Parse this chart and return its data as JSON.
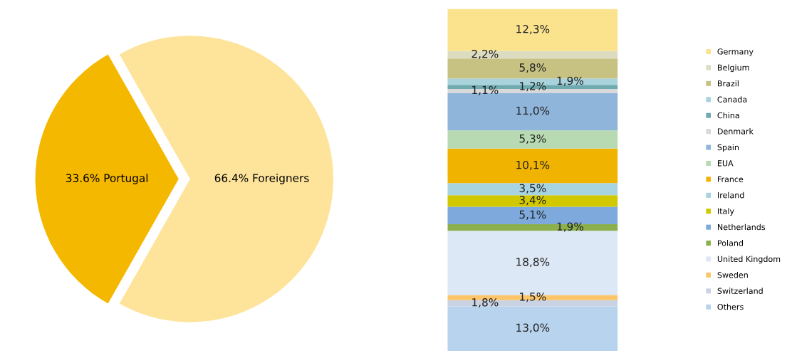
{
  "chart_data": [
    {
      "type": "pie",
      "categories": [
        "Portugal",
        "Foreigners"
      ],
      "values": [
        33.6,
        66.4
      ],
      "value_labels": [
        "33.6%",
        "66.4%"
      ],
      "colors": [
        "#f5b800",
        "#fde49a"
      ]
    },
    {
      "type": "bar",
      "stacked": true,
      "categories": [
        null
      ],
      "tick_labels": false,
      "legend": "right",
      "series": [
        {
          "name": "Others",
          "color": "#b8d3ee",
          "values": [
            13.0
          ],
          "value_labels": [
            "13,0%"
          ]
        },
        {
          "name": "Switzerland",
          "color": "#c9d3e3",
          "values": [
            1.8
          ],
          "value_labels": [
            "1,8%"
          ]
        },
        {
          "name": "Sweden",
          "color": "#fcc56a",
          "values": [
            1.5
          ],
          "value_labels": [
            "1,5%"
          ]
        },
        {
          "name": "United Kingdom",
          "color": "#dce8f5",
          "values": [
            18.8
          ],
          "value_labels": [
            "18,8%"
          ]
        },
        {
          "name": "Poland",
          "color": "#8db04e",
          "values": [
            1.9
          ],
          "value_labels": [
            "1,9%"
          ]
        },
        {
          "name": "Netherlands",
          "color": "#7ea9dc",
          "values": [
            5.1
          ],
          "value_labels": [
            "5,1%"
          ]
        },
        {
          "name": "Italy",
          "color": "#d2c800",
          "values": [
            3.4
          ],
          "value_labels": [
            "3,4%"
          ]
        },
        {
          "name": "Ireland",
          "color": "#a8d3e0",
          "values": [
            3.5
          ],
          "value_labels": [
            "3,5%"
          ]
        },
        {
          "name": "France",
          "color": "#f0b400",
          "values": [
            10.1
          ],
          "value_labels": [
            "10,1%"
          ]
        },
        {
          "name": "EUA",
          "color": "#b7dab2",
          "values": [
            5.3
          ],
          "value_labels": [
            "5,3%"
          ]
        },
        {
          "name": "Spain",
          "color": "#8fb5db",
          "values": [
            11.0
          ],
          "value_labels": [
            "11,0%"
          ]
        },
        {
          "name": "Denmark",
          "color": "#d9d9d9",
          "values": [
            1.1
          ],
          "value_labels": [
            "1,1%"
          ]
        },
        {
          "name": "China",
          "color": "#6eaab0",
          "values": [
            1.2
          ],
          "value_labels": [
            "1,2%"
          ]
        },
        {
          "name": "Canada",
          "color": "#a9d3dc",
          "values": [
            1.9
          ],
          "value_labels": [
            "1,9%"
          ]
        },
        {
          "name": "Brazil",
          "color": "#c7c282",
          "values": [
            5.8
          ],
          "value_labels": [
            "5,8%"
          ]
        },
        {
          "name": "Belgium",
          "color": "#dcdcc0",
          "values": [
            2.2
          ],
          "value_labels": [
            "2,2%"
          ]
        },
        {
          "name": "Germany",
          "color": "#fbe38e",
          "values": [
            12.3
          ],
          "value_labels": [
            "12,3%"
          ]
        }
      ]
    }
  ]
}
